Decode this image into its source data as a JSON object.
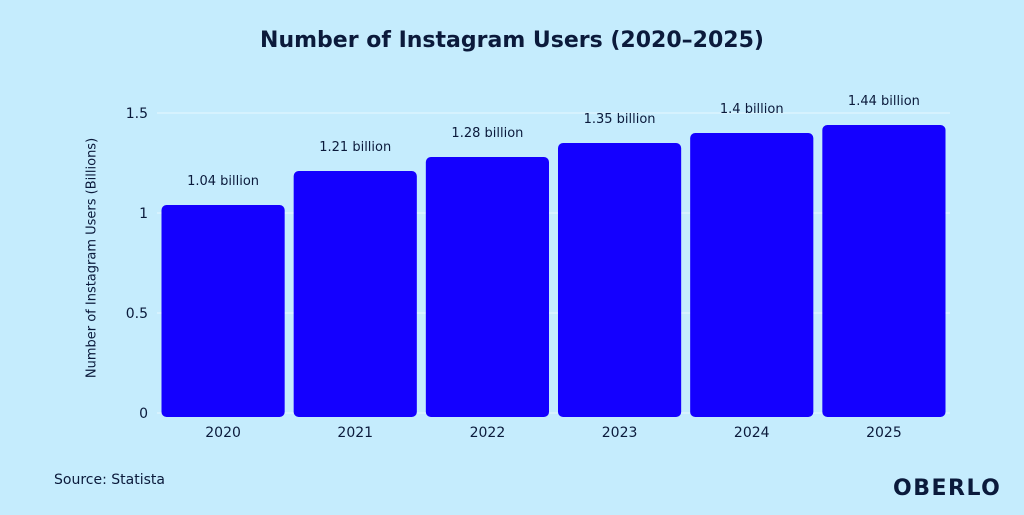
{
  "chart_data": {
    "type": "bar",
    "title": "Number of Instagram Users (2020–2025)",
    "ylabel": "Number of Instagram Users (Billions)",
    "xlabel": "",
    "categories": [
      "2020",
      "2021",
      "2022",
      "2023",
      "2024",
      "2025"
    ],
    "values": [
      1.04,
      1.21,
      1.28,
      1.35,
      1.4,
      1.44
    ],
    "data_labels": [
      "1.04 billion",
      "1.21 billion",
      "1.28 billion",
      "1.35 billion",
      "1.4 billion",
      "1.44 billion"
    ],
    "yticks": [
      "0",
      "0.5",
      "1",
      "1.5"
    ],
    "ylim": [
      0,
      1.5
    ],
    "grid": true,
    "legend": "none",
    "bar_color": "#1400ff",
    "gridline_color": "#e6f7ff"
  },
  "footer": {
    "source": "Source: Statista",
    "brand": "OBERLO"
  },
  "colors": {
    "background": "#c5ecfd",
    "text": "#0b1a3b"
  }
}
